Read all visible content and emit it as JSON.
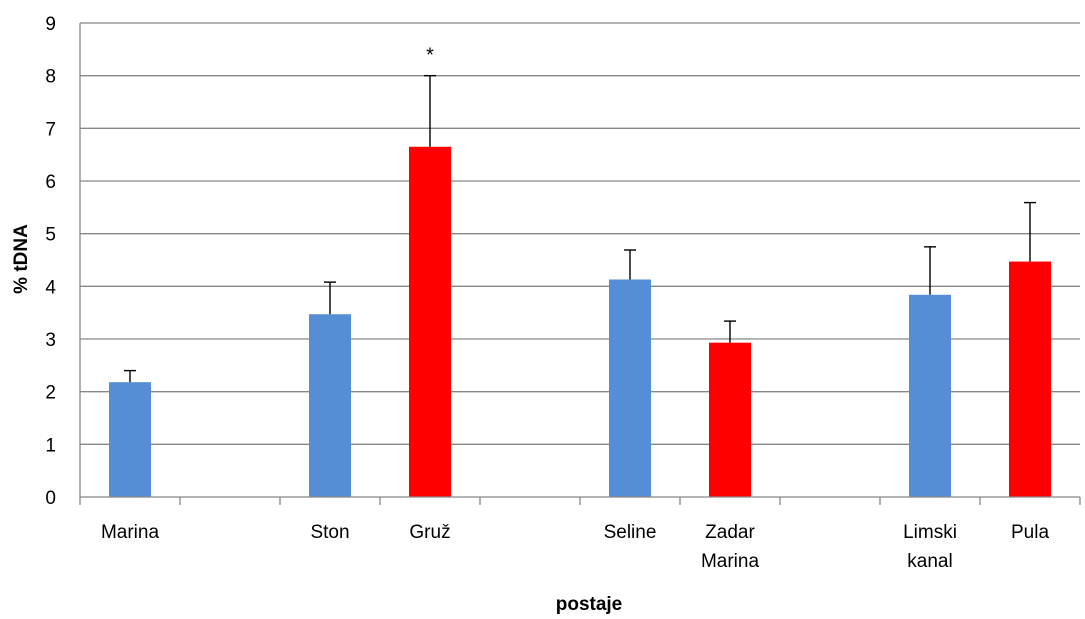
{
  "chart_data": {
    "type": "bar",
    "title": "",
    "xlabel": "postaje",
    "ylabel": "% tDNA",
    "ylim": [
      0,
      9
    ],
    "yticks": [
      "0",
      "1",
      "2",
      "3",
      "4",
      "5",
      "6",
      "7",
      "8",
      "9"
    ],
    "grid": true,
    "colors": {
      "blue": "#558ED5",
      "red": "#FF0000",
      "grid": "#868686",
      "error": "#000000"
    },
    "categories": [
      {
        "label": [
          "Marina"
        ],
        "value": 2.18,
        "error": 0.22,
        "color": "blue"
      },
      {
        "label": [
          ""
        ],
        "value": null,
        "error": null,
        "color": null
      },
      {
        "label": [
          "Ston"
        ],
        "value": 3.47,
        "error": 0.61,
        "color": "blue"
      },
      {
        "label": [
          "Gruž"
        ],
        "value": 6.65,
        "error": 1.35,
        "color": "red",
        "annotation": "*"
      },
      {
        "label": [
          ""
        ],
        "value": null,
        "error": null,
        "color": null
      },
      {
        "label": [
          "Seline"
        ],
        "value": 4.13,
        "error": 0.56,
        "color": "blue"
      },
      {
        "label": [
          "Zadar",
          "Marina"
        ],
        "value": 2.93,
        "error": 0.41,
        "color": "red"
      },
      {
        "label": [
          ""
        ],
        "value": null,
        "error": null,
        "color": null
      },
      {
        "label": [
          "Limski",
          "kanal"
        ],
        "value": 3.84,
        "error": 0.91,
        "color": "blue"
      },
      {
        "label": [
          "Pula"
        ],
        "value": 4.47,
        "error": 1.12,
        "color": "red"
      }
    ]
  }
}
